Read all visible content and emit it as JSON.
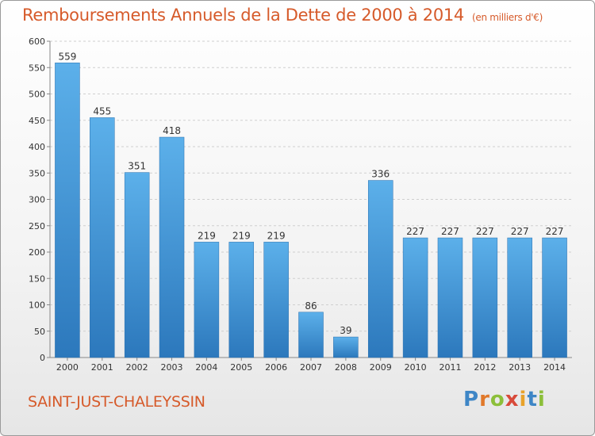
{
  "header": {
    "title": "Remboursements Annuels de la Dette de 2000 à 2014",
    "subtitle": "(en milliers d'€)"
  },
  "footer": {
    "commune": "SAINT-JUST-CHALEYSSIN",
    "logo_text": "Proxiti"
  },
  "colors": {
    "accent": "#d65a2a",
    "bar_top": "#5aaee8",
    "bar_bottom": "#2e7cc0",
    "grid": "#cfcfcf"
  },
  "chart_data": {
    "type": "bar",
    "title": "Remboursements Annuels de la Dette de 2000 à 2014",
    "subtitle": "(en milliers d'€)",
    "categories": [
      "2000",
      "2001",
      "2002",
      "2003",
      "2004",
      "2005",
      "2006",
      "2007",
      "2008",
      "2009",
      "2010",
      "2011",
      "2012",
      "2013",
      "2014"
    ],
    "values": [
      559,
      455,
      351,
      418,
      219,
      219,
      219,
      86,
      39,
      336,
      227,
      227,
      227,
      227,
      227
    ],
    "ylim": [
      0,
      600
    ],
    "yticks": [
      0,
      50,
      100,
      150,
      200,
      250,
      300,
      350,
      400,
      450,
      500,
      550,
      600
    ],
    "grid": true,
    "data_labels": true
  }
}
